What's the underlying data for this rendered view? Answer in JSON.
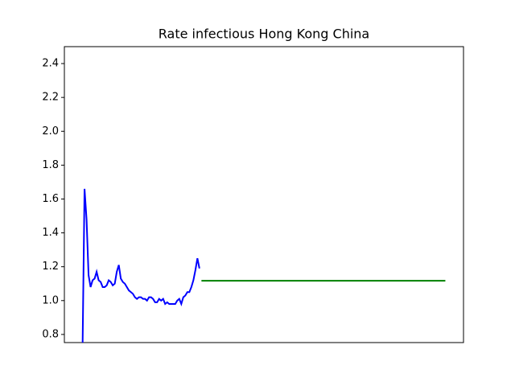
{
  "chart_data": {
    "type": "line",
    "title": "Rate infectious Hong Kong China",
    "series": [
      {
        "color": "#0000ff",
        "x": [
          0,
          1,
          2,
          3,
          4,
          5,
          6,
          7,
          8,
          9,
          10,
          11,
          12,
          13,
          14,
          15,
          16,
          17,
          18,
          19,
          20,
          21,
          22,
          23,
          24,
          25,
          26,
          27,
          28,
          29,
          30,
          31,
          32,
          33,
          34,
          35,
          36,
          37,
          38,
          39,
          40,
          41,
          42,
          43,
          44,
          45,
          46,
          47,
          48,
          49,
          50,
          51,
          52,
          53,
          54,
          55,
          56,
          57,
          58
        ],
        "values": [
          0.7,
          1.66,
          1.48,
          1.15,
          1.08,
          1.12,
          1.13,
          1.17,
          1.12,
          1.11,
          1.08,
          1.08,
          1.09,
          1.12,
          1.11,
          1.09,
          1.1,
          1.17,
          1.21,
          1.13,
          1.11,
          1.1,
          1.08,
          1.06,
          1.05,
          1.04,
          1.02,
          1.01,
          1.02,
          1.02,
          1.01,
          1.01,
          1.0,
          1.02,
          1.02,
          1.01,
          0.99,
          0.99,
          1.01,
          1.0,
          1.01,
          0.98,
          0.99,
          0.98,
          0.98,
          0.98,
          0.98,
          1.0,
          1.01,
          0.98,
          1.02,
          1.03,
          1.05,
          1.05,
          1.08,
          1.12,
          1.18,
          1.25,
          1.19
        ]
      },
      {
        "color": "#008000",
        "x": [
          59,
          180
        ],
        "values": [
          1.117,
          1.117
        ]
      }
    ],
    "xlim": [
      -9,
      189
    ],
    "ylim": [
      0.752,
      2.5
    ],
    "yticks": [
      0.8,
      {
        "value": 1,
        "label": "1.0"
      },
      1.2,
      1.4,
      1.6,
      1.8,
      {
        "value": 2,
        "label": "2.0"
      },
      2.2,
      2.4
    ]
  }
}
